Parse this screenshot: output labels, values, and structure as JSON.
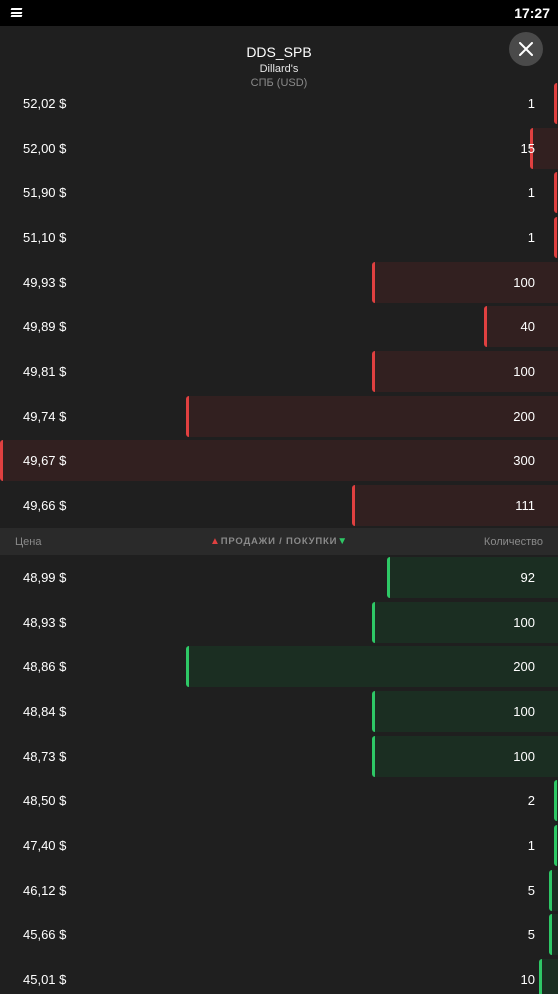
{
  "status_bar": {
    "time": "17:27",
    "notification_icon": "notification-icon"
  },
  "header": {
    "ticker": "DDS_SPB",
    "company": "Dillard's",
    "exchange": "СПБ (USD)",
    "close_icon": "close-icon"
  },
  "columns": {
    "price": "Цена",
    "sells": "ПРОДАЖИ / ПОКУПКИ",
    "quantity": "Количество",
    "up_icon": "▲",
    "down_icon": "▼"
  },
  "colors": {
    "ask": "#e04040",
    "bid": "#2ec866",
    "background": "#1f1f1f"
  },
  "max_quantity": 300,
  "asks": [
    {
      "price": "52,02 $",
      "qty": "1"
    },
    {
      "price": "52,00 $",
      "qty": "15"
    },
    {
      "price": "51,90 $",
      "qty": "1"
    },
    {
      "price": "51,10 $",
      "qty": "1"
    },
    {
      "price": "49,93 $",
      "qty": "100"
    },
    {
      "price": "49,89 $",
      "qty": "40"
    },
    {
      "price": "49,81 $",
      "qty": "100"
    },
    {
      "price": "49,74 $",
      "qty": "200"
    },
    {
      "price": "49,67 $",
      "qty": "300"
    },
    {
      "price": "49,66 $",
      "qty": "111"
    }
  ],
  "bids": [
    {
      "price": "48,99 $",
      "qty": "92"
    },
    {
      "price": "48,93 $",
      "qty": "100"
    },
    {
      "price": "48,86 $",
      "qty": "200"
    },
    {
      "price": "48,84 $",
      "qty": "100"
    },
    {
      "price": "48,73 $",
      "qty": "100"
    },
    {
      "price": "48,50 $",
      "qty": "2"
    },
    {
      "price": "47,40 $",
      "qty": "1"
    },
    {
      "price": "46,12 $",
      "qty": "5"
    },
    {
      "price": "45,66 $",
      "qty": "5"
    },
    {
      "price": "45,01 $",
      "qty": "10"
    }
  ]
}
